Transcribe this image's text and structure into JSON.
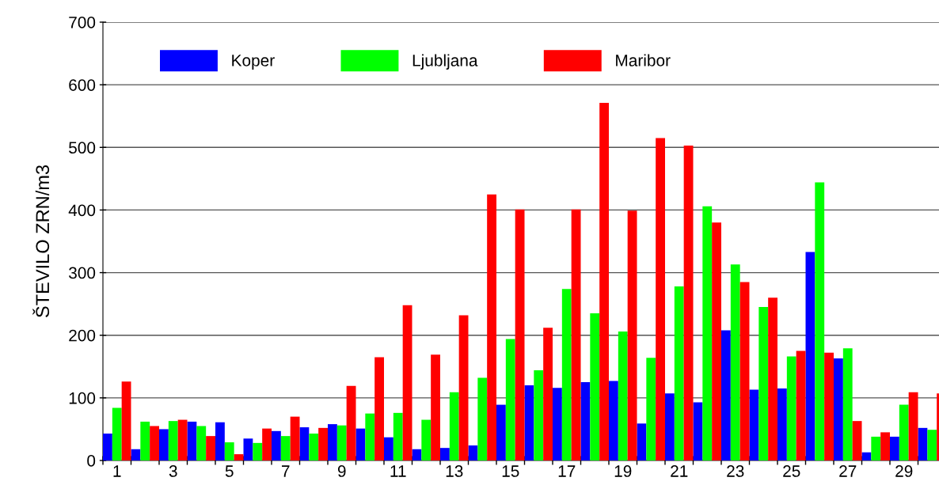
{
  "chart_data": {
    "type": "bar",
    "ylabel": "ŠTEVILO ZRN/m3",
    "categories": [
      "1",
      null,
      "3",
      null,
      "5",
      null,
      "7",
      null,
      "9",
      null,
      "11",
      null,
      "13",
      null,
      "15",
      null,
      "17",
      null,
      "19",
      null,
      "21",
      null,
      "23",
      null,
      "25",
      null,
      "27",
      null,
      "29",
      null
    ],
    "series": [
      {
        "name": "Koper",
        "color": "#0000ff",
        "values": [
          43,
          18,
          50,
          62,
          61,
          35,
          47,
          53,
          58,
          51,
          37,
          18,
          20,
          24,
          89,
          120,
          116,
          125,
          127,
          59,
          107,
          93,
          208,
          113,
          115,
          333,
          163,
          13,
          38,
          52
        ]
      },
      {
        "name": "Ljubljana",
        "color": "#00ff00",
        "values": [
          84,
          62,
          63,
          55,
          29,
          28,
          39,
          43,
          56,
          75,
          76,
          65,
          109,
          132,
          194,
          144,
          274,
          235,
          206,
          164,
          278,
          406,
          313,
          245,
          166,
          444,
          179,
          38,
          89,
          49
        ]
      },
      {
        "name": "Maribor",
        "color": "#ff0000",
        "values": [
          126,
          55,
          65,
          39,
          10,
          51,
          70,
          52,
          119,
          165,
          248,
          169,
          232,
          425,
          401,
          212,
          401,
          571,
          399,
          515,
          503,
          380,
          285,
          260,
          175,
          172,
          63,
          45,
          109,
          107
        ]
      }
    ],
    "ylim": [
      0,
      700
    ],
    "yticks": [
      0,
      100,
      200,
      300,
      400,
      500,
      600,
      700
    ],
    "grid": "y",
    "legend": "top left"
  }
}
